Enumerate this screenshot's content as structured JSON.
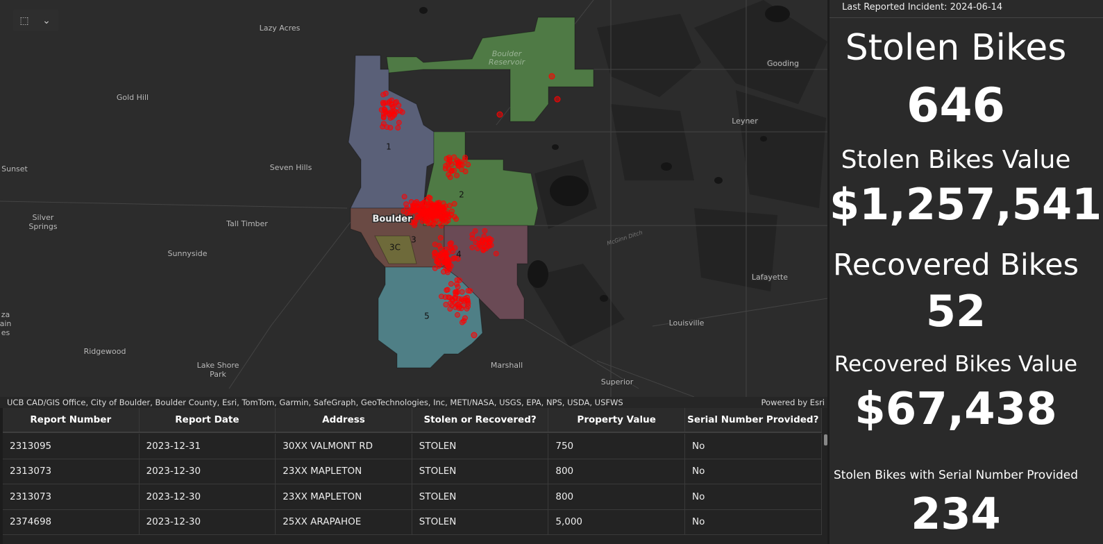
{
  "toolbar": {
    "select_icon": "⬚",
    "dropdown_icon": "⌄"
  },
  "map": {
    "places": [
      {
        "lines": [
          "Lazy Acres"
        ]
      },
      {
        "lines": [
          "Gold Hill"
        ]
      },
      {
        "lines": [
          "Sunset"
        ]
      },
      {
        "lines": [
          "Seven Hills"
        ]
      },
      {
        "lines": [
          "Silver",
          "Springs"
        ]
      },
      {
        "lines": [
          "Tall Timber"
        ]
      },
      {
        "lines": [
          "Sunnyside"
        ]
      },
      {
        "lines": [
          "Ridgewood"
        ]
      },
      {
        "lines": [
          "Lake Shore",
          "Park"
        ]
      },
      {
        "lines": [
          "Marshall"
        ]
      },
      {
        "lines": [
          "Superior"
        ]
      },
      {
        "lines": [
          "Louisville"
        ]
      },
      {
        "lines": [
          "Lafayette"
        ]
      },
      {
        "lines": [
          "Leyner"
        ]
      },
      {
        "lines": [
          "Gooding"
        ]
      },
      {
        "lines": [
          "za",
          "ain",
          "es"
        ]
      }
    ],
    "city": "Boulder",
    "reservoir": [
      "Boulder",
      "Reservoir"
    ],
    "ditch": "McGinn Ditch",
    "districts": [
      "1",
      "2",
      "3",
      "3C",
      "4",
      "5"
    ],
    "attribution": "UCB CAD/GIS Office, City of Boulder, Boulder County, Esri, TomTom, Garmin, SafeGraph, GeoTechnologies, Inc, METI/NASA, USGS, EPA, NPS, USDA, USFWS",
    "powered_by": "Powered by Esri"
  },
  "table": {
    "columns": [
      "Report Number",
      "Report Date",
      "Address",
      "Stolen or Recovered?",
      "Property Value",
      "Serial Number Provided?"
    ],
    "rows": [
      [
        "2313095",
        "2023-12-31",
        "30XX VALMONT RD",
        "STOLEN",
        "750",
        "No"
      ],
      [
        "2313073",
        "2023-12-30",
        "23XX MAPLETON",
        "STOLEN",
        "800",
        "No"
      ],
      [
        "2313073",
        "2023-12-30",
        "23XX MAPLETON",
        "STOLEN",
        "800",
        "No"
      ],
      [
        "2374698",
        "2023-12-30",
        "25XX ARAPAHOE",
        "STOLEN",
        "5,000",
        "No"
      ]
    ]
  },
  "panel": {
    "last_reported": "Last Reported Incident: 2024-06-14",
    "stats": [
      {
        "label": "Stolen Bikes",
        "value": "646"
      },
      {
        "label": "Stolen Bikes Value",
        "value": "$1,257,541"
      },
      {
        "label": "Recovered Bikes",
        "value": "52"
      },
      {
        "label": "Recovered Bikes Value",
        "value": "$67,438"
      },
      {
        "label": "Stolen Bikes with Serial Number Provided",
        "value": "234"
      }
    ]
  }
}
